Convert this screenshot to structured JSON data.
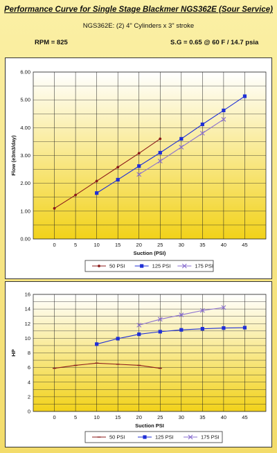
{
  "header": {
    "title": "Performance Curve for Single Stage Blackmer NGS362E (Sour Service)",
    "subtitle": "NGS362E: (2) 4\" Cylinders x 3\" stroke",
    "rpm": "RPM = 825",
    "sg": "S.G = 0.65 @ 60 F / 14.7 psia"
  },
  "colors": {
    "series50": "#8b1a1a",
    "series125": "#1f2fd6",
    "series175": "#8a6fd0",
    "grid": "#222222",
    "plot_gradient_top": "#ffffff",
    "plot_gradient_bottom": "#f2d21a"
  },
  "chart_data": [
    {
      "type": "line",
      "title": "",
      "xlabel": "Suction (PSI)",
      "ylabel": "Flow (e3m3/day)",
      "xlim": [
        -5,
        50
      ],
      "ylim": [
        0,
        6
      ],
      "xticks": [
        "0",
        "5",
        "10",
        "15",
        "20",
        "25",
        "30",
        "35",
        "40",
        "45"
      ],
      "yticks": [
        "0.00",
        "1.00",
        "2.00",
        "3.00",
        "4.00",
        "5.00",
        "6.00"
      ],
      "grid": true,
      "legend_position": "bottom",
      "series": [
        {
          "name": "50 PSI",
          "marker": "diamond",
          "x": [
            0,
            5,
            10,
            15,
            20,
            25
          ],
          "values": [
            1.1,
            1.58,
            2.08,
            2.58,
            3.08,
            3.6
          ]
        },
        {
          "name": "125 PSI",
          "marker": "square",
          "x": [
            10,
            15,
            20,
            25,
            30,
            35,
            40,
            45
          ],
          "values": [
            1.65,
            2.13,
            2.62,
            3.1,
            3.6,
            4.12,
            4.62,
            5.13
          ]
        },
        {
          "name": "175 PSI",
          "marker": "x",
          "x": [
            20,
            25,
            30,
            35,
            40
          ],
          "values": [
            2.32,
            2.8,
            3.3,
            3.8,
            4.3
          ]
        }
      ]
    },
    {
      "type": "line",
      "title": "",
      "xlabel": "Suction PSI",
      "ylabel": "HP",
      "xlim": [
        -5,
        50
      ],
      "ylim": [
        0,
        16
      ],
      "xticks": [
        "0",
        "5",
        "10",
        "15",
        "20",
        "25",
        "30",
        "35",
        "40",
        "45"
      ],
      "yticks": [
        "0",
        "2",
        "4",
        "6",
        "8",
        "10",
        "12",
        "14",
        "16"
      ],
      "grid": true,
      "legend_position": "bottom",
      "series": [
        {
          "name": "50 PSI",
          "marker": "dash",
          "x": [
            0,
            5,
            10,
            15,
            20,
            25
          ],
          "values": [
            5.9,
            6.3,
            6.6,
            6.45,
            6.3,
            5.9
          ]
        },
        {
          "name": "125 PSI",
          "marker": "square",
          "x": [
            10,
            15,
            20,
            25,
            30,
            35,
            40,
            45
          ],
          "values": [
            9.2,
            9.95,
            10.55,
            10.9,
            11.15,
            11.3,
            11.4,
            11.45
          ]
        },
        {
          "name": "175 PSI",
          "marker": "x",
          "x": [
            20,
            25,
            30,
            35,
            40
          ],
          "values": [
            11.8,
            12.6,
            13.2,
            13.8,
            14.2
          ]
        }
      ]
    }
  ]
}
